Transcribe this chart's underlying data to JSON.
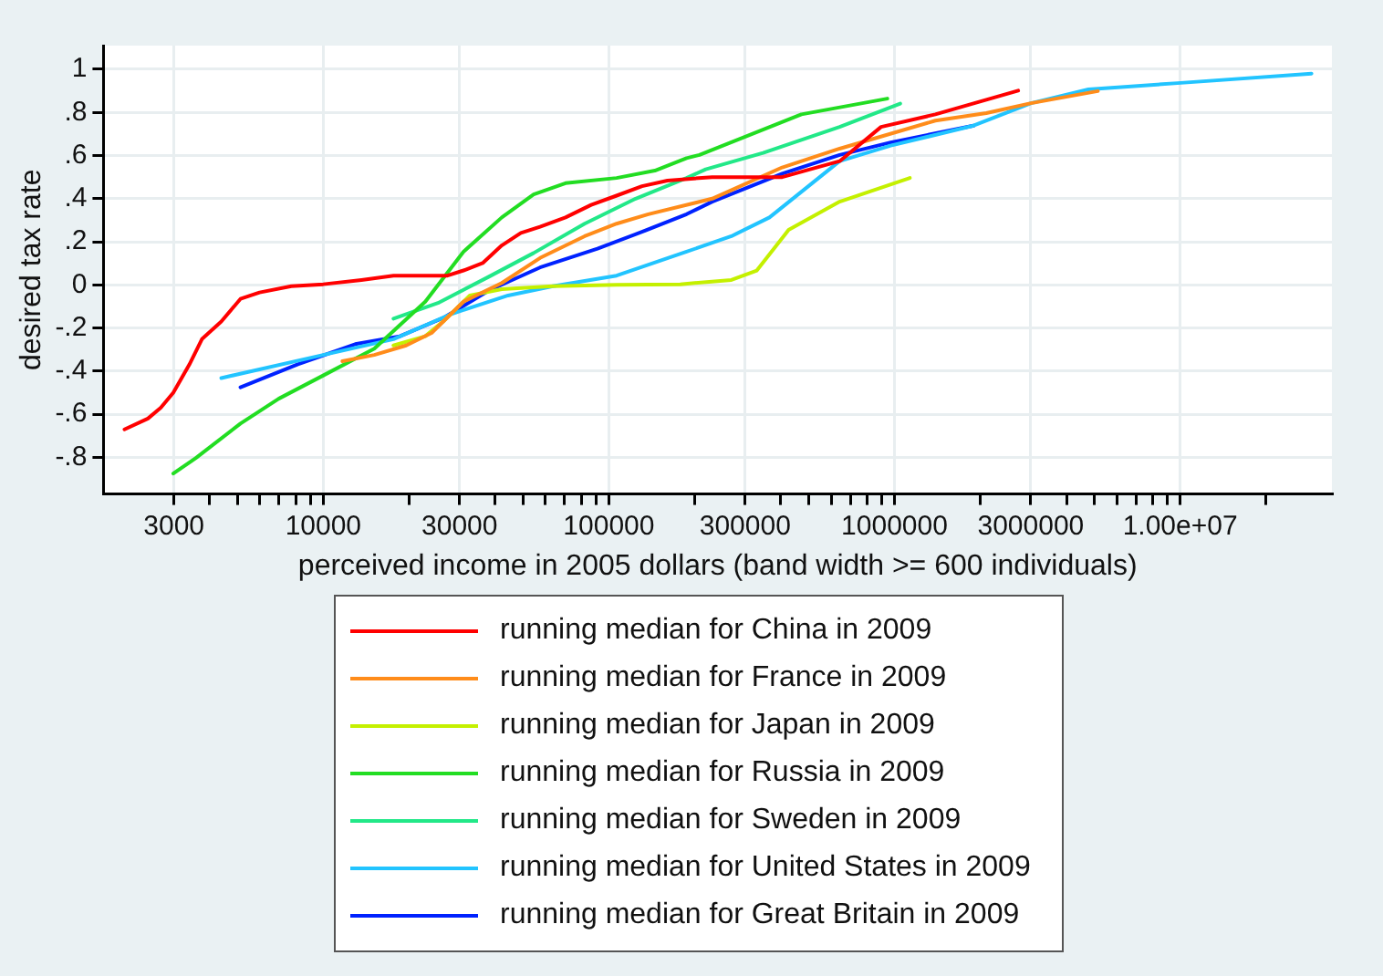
{
  "chart_data": {
    "type": "line",
    "xlabel": "perceived income in 2005 dollars (band width >= 600 individuals)",
    "ylabel": "desired tax rate",
    "log": "x",
    "xlim": [
      1700,
      34000000
    ],
    "ylim": [
      -0.97,
      1.11
    ],
    "xticks": [
      3000,
      {
        "value": 4000,
        "label": null
      },
      {
        "value": 5000,
        "label": null
      },
      {
        "value": 6000,
        "label": null
      },
      {
        "value": 7000,
        "label": null
      },
      {
        "value": 8000,
        "label": null
      },
      {
        "value": 9000,
        "label": null
      },
      10000,
      {
        "value": 20000,
        "label": null
      },
      30000,
      {
        "value": 40000,
        "label": null
      },
      {
        "value": 50000,
        "label": null
      },
      {
        "value": 60000,
        "label": null
      },
      {
        "value": 70000,
        "label": null
      },
      {
        "value": 80000,
        "label": null
      },
      {
        "value": 90000,
        "label": null
      },
      100000,
      {
        "value": 200000,
        "label": null
      },
      300000,
      {
        "value": 400000,
        "label": null
      },
      {
        "value": 500000,
        "label": null
      },
      {
        "value": 600000,
        "label": null
      },
      {
        "value": 700000,
        "label": null
      },
      {
        "value": 800000,
        "label": null
      },
      {
        "value": 900000,
        "label": null
      },
      1000000,
      {
        "value": 2000000,
        "label": null
      },
      3000000,
      {
        "value": 4000000,
        "label": null
      },
      {
        "value": 5000000,
        "label": null
      },
      {
        "value": 6000000,
        "label": null
      },
      {
        "value": 7000000,
        "label": null
      },
      {
        "value": 8000000,
        "label": null
      },
      {
        "value": 9000000,
        "label": null
      },
      {
        "value": 10000000,
        "label": "1.00e+07"
      },
      {
        "value": 20000000,
        "label": null
      }
    ],
    "yticks": [
      {
        "value": -0.8,
        "label": "-.8"
      },
      {
        "value": -0.6,
        "label": "-.6"
      },
      {
        "value": -0.4,
        "label": "-.4"
      },
      {
        "value": -0.2,
        "label": "-.2"
      },
      0,
      {
        "value": 0.2,
        "label": ".2"
      },
      {
        "value": 0.4,
        "label": ".4"
      },
      {
        "value": 0.6,
        "label": ".6"
      },
      {
        "value": 0.8,
        "label": ".8"
      },
      1
    ],
    "grid": true,
    "legend": "bottom",
    "marker": "none",
    "line_style": "solid",
    "series": [
      {
        "name": "running median for China in 2009",
        "color": "#ff0000",
        "x": [
          2014,
          2432,
          2698,
          2985,
          3396,
          3767,
          4395,
          5129,
          5984,
          7730,
          10000,
          13610,
          17610,
          22760,
          27230,
          30970,
          36140,
          42170,
          49200,
          57410,
          70500,
          86690,
          106400,
          130600,
          160300,
          230000,
          404500,
          642700,
          897600,
          1390000,
          2710000
        ],
        "values": [
          -0.67,
          -0.62,
          -0.57,
          -0.5,
          -0.37,
          -0.25,
          -0.17,
          -0.065,
          -0.035,
          -0.006,
          0.003,
          0.023,
          0.043,
          0.043,
          0.043,
          0.067,
          0.101,
          0.183,
          0.241,
          0.27,
          0.313,
          0.371,
          0.414,
          0.458,
          0.484,
          0.5,
          0.5,
          0.574,
          0.733,
          0.791,
          0.901
        ]
      },
      {
        "name": "running median for France in 2009",
        "color": "#ff8c1a",
        "x": [
          11670,
          15090,
          19500,
          23950,
          30970,
          42170,
          57410,
          82250,
          106400,
          137400,
          230000,
          404500,
          642700,
          1390000,
          2096000,
          3006000,
          5152000
        ],
        "values": [
          -0.354,
          -0.325,
          -0.281,
          -0.223,
          -0.078,
          0.009,
          0.125,
          0.226,
          0.284,
          0.328,
          0.4,
          0.545,
          0.632,
          0.762,
          0.797,
          0.843,
          0.899
        ]
      },
      {
        "name": "running median for Japan in 2009",
        "color": "#c4f000",
        "x": [
          17610,
          22760,
          26530,
          32590,
          42170,
          63680,
          106400,
          177800,
          268500,
          329600,
          425800,
          642700,
          1132000
        ],
        "values": [
          -0.281,
          -0.238,
          -0.165,
          -0.049,
          -0.02,
          -0.006,
          0,
          0.003,
          0.023,
          0.067,
          0.255,
          0.386,
          0.496
        ]
      },
      {
        "name": "running median for Russia in 2009",
        "color": "#22dd22",
        "x": [
          2985,
          3581,
          5129,
          6982,
          10000,
          15090,
          22760,
          30970,
          42170,
          54530,
          70500,
          106400,
          144900,
          187100,
          207500,
          472000,
          944000
        ],
        "values": [
          -0.875,
          -0.803,
          -0.643,
          -0.528,
          -0.42,
          -0.296,
          -0.078,
          0.154,
          0.313,
          0.42,
          0.472,
          0.496,
          0.53,
          0.588,
          0.603,
          0.791,
          0.864
        ]
      },
      {
        "name": "running median for Sweden in 2009",
        "color": "#22e888",
        "x": [
          17610,
          25220,
          38000,
          54530,
          82250,
          124100,
          187100,
          218300,
          346700,
          642700,
          1047000
        ],
        "values": [
          -0.157,
          -0.084,
          0.038,
          0.148,
          0.284,
          0.4,
          0.496,
          0.536,
          0.612,
          0.733,
          0.841
        ]
      },
      {
        "name": "running median for United States in 2009",
        "color": "#22c4ff",
        "x": [
          4395,
          10000,
          17610,
          27920,
          44360,
          63680,
          106400,
          187100,
          268500,
          365000,
          642700,
          970000,
          1892000,
          3006000,
          4775000,
          9793000,
          28840000
        ],
        "values": [
          -0.432,
          -0.325,
          -0.252,
          -0.136,
          -0.049,
          -0.006,
          0.043,
          0.154,
          0.226,
          0.313,
          0.574,
          0.646,
          0.739,
          0.843,
          0.907,
          0.936,
          0.98
        ]
      },
      {
        "name": "running median for Great Britain in 2009",
        "color": "#0022ff",
        "x": [
          5129,
          8147,
          12940,
          18540,
          26530,
          38000,
          57410,
          91200,
          130600,
          187100,
          230000,
          404500,
          642700,
          970000,
          1892000
        ],
        "values": [
          -0.475,
          -0.368,
          -0.275,
          -0.238,
          -0.151,
          -0.026,
          0.081,
          0.168,
          0.246,
          0.328,
          0.386,
          0.516,
          0.603,
          0.661,
          0.739
        ]
      }
    ]
  }
}
